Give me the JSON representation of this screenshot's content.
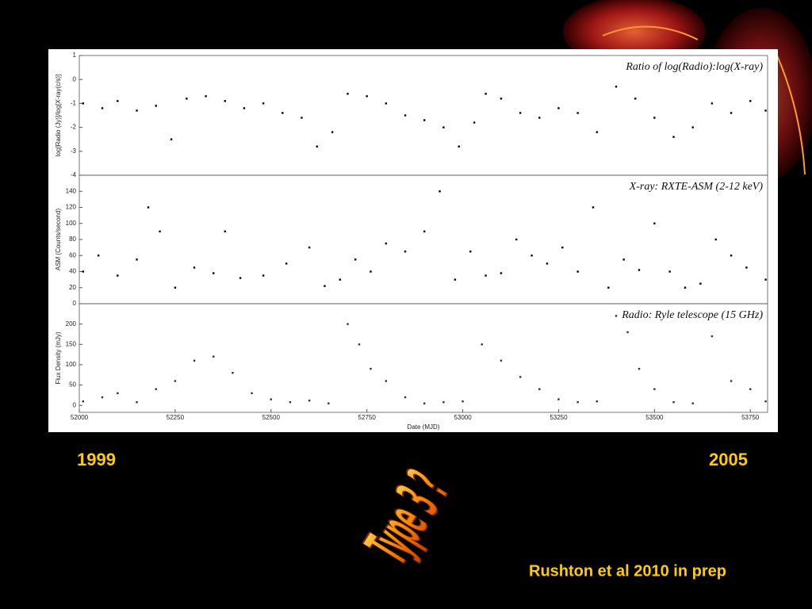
{
  "chart_data": [
    {
      "type": "scatter",
      "title": "Ratio of log(Radio):log(X-ray)",
      "y_label": "log[Radio (Jy)]/log[X-ray(c/s)]",
      "color": "#000000",
      "x": [
        52010,
        52060,
        52100,
        52150,
        52200,
        52240,
        52280,
        52330,
        52380,
        52430,
        52480,
        52530,
        52580,
        52620,
        52660,
        52700,
        52750,
        52800,
        52850,
        52900,
        52950,
        52990,
        53030,
        53060,
        53100,
        53150,
        53200,
        53250,
        53300,
        53350,
        53400,
        53450,
        53500,
        53550,
        53600,
        53650,
        53700,
        53750,
        53790
      ],
      "values": [
        -1.0,
        -1.2,
        -0.9,
        -1.3,
        -1.1,
        -2.5,
        -0.8,
        -0.7,
        -0.9,
        -1.2,
        -1.0,
        -1.4,
        -1.6,
        -2.8,
        -2.2,
        -0.6,
        -0.7,
        -1.0,
        -1.5,
        -1.7,
        -2.0,
        -2.8,
        -1.8,
        -0.6,
        -0.8,
        -1.4,
        -1.6,
        -1.2,
        -1.4,
        -2.2,
        -0.3,
        -0.8,
        -1.6,
        -2.4,
        -2.0,
        -1.0,
        -1.4,
        -0.9,
        -1.3
      ],
      "xlim": [
        52000,
        53795
      ],
      "ylim": [
        -4,
        1
      ],
      "yticks": [
        -4,
        -3,
        -2,
        -1,
        0,
        1
      ]
    },
    {
      "type": "scatter",
      "title": "X-ray: RXTE-ASM (2-12 keV)",
      "y_label": "ASM (Counts/second)",
      "color": "#000000",
      "x": [
        52010,
        52050,
        52100,
        52150,
        52180,
        52210,
        52250,
        52300,
        52350,
        52380,
        52420,
        52480,
        52540,
        52600,
        52640,
        52680,
        52720,
        52760,
        52800,
        52850,
        52900,
        52940,
        52980,
        53020,
        53060,
        53100,
        53140,
        53180,
        53220,
        53260,
        53300,
        53340,
        53380,
        53420,
        53460,
        53500,
        53540,
        53580,
        53620,
        53660,
        53700,
        53740,
        53790
      ],
      "values": [
        40,
        60,
        35,
        55,
        120,
        90,
        20,
        45,
        38,
        90,
        32,
        35,
        50,
        70,
        22,
        30,
        55,
        40,
        75,
        65,
        90,
        140,
        30,
        65,
        35,
        38,
        80,
        60,
        50,
        70,
        40,
        120,
        20,
        55,
        42,
        100,
        40,
        20,
        25,
        80,
        60,
        45,
        30
      ],
      "xlim": [
        52000,
        53795
      ],
      "ylim": [
        0,
        160
      ],
      "yticks": [
        0,
        20,
        40,
        60,
        80,
        100,
        120,
        140
      ]
    },
    {
      "type": "scatter",
      "title": "Radio: Ryle telescope (15 GHz)",
      "y_label": "Flux Density (mJy)",
      "x_label": "Date (MJD)",
      "color": "#333333",
      "x": [
        52010,
        52060,
        52100,
        52150,
        52200,
        52250,
        52300,
        52350,
        52400,
        52450,
        52500,
        52550,
        52600,
        52650,
        52700,
        52730,
        52760,
        52800,
        52850,
        52900,
        52950,
        53000,
        53050,
        53100,
        53150,
        53200,
        53250,
        53300,
        53350,
        53400,
        53430,
        53460,
        53500,
        53550,
        53600,
        53650,
        53700,
        53750,
        53790
      ],
      "values": [
        10,
        20,
        30,
        8,
        40,
        60,
        110,
        120,
        80,
        30,
        15,
        8,
        12,
        5,
        200,
        150,
        90,
        60,
        20,
        5,
        8,
        10,
        150,
        110,
        70,
        40,
        15,
        8,
        10,
        220,
        180,
        90,
        40,
        8,
        5,
        170,
        60,
        40,
        10
      ],
      "xlim": [
        52000,
        53795
      ],
      "ylim": [
        -17,
        250
      ],
      "yticks": [
        0,
        50,
        100,
        150,
        200
      ],
      "xticks": [
        52000,
        52250,
        52500,
        52750,
        53000,
        53250,
        53500,
        53750
      ]
    }
  ],
  "slide": {
    "start_year": "1999",
    "end_year": "2005",
    "wordart": "Type 3 ?",
    "credit": "Rushton et al 2010 in prep"
  }
}
